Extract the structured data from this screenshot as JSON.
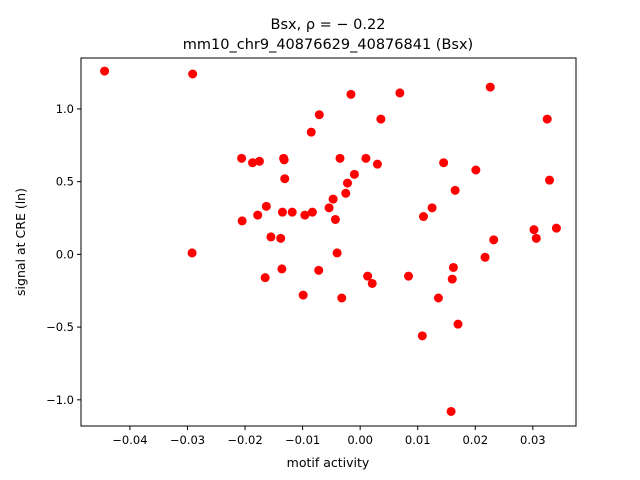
{
  "chart_data": {
    "type": "scatter",
    "title": "Bsx, ρ = − 0.22",
    "subtitle": "mm10_chr9_40876629_40876841 (Bsx)",
    "xlabel": "motif activity",
    "ylabel": "signal at CRE (ln)",
    "xlim": [
      -0.0485,
      0.0375
    ],
    "ylim": [
      -1.18,
      1.35
    ],
    "xticks": [
      -0.04,
      -0.03,
      -0.02,
      -0.01,
      0.0,
      0.01,
      0.02,
      0.03
    ],
    "xtick_labels": [
      "−0.04",
      "−0.03",
      "−0.02",
      "−0.01",
      "0.00",
      "0.01",
      "0.02",
      "0.03"
    ],
    "yticks": [
      -1.0,
      -0.5,
      0.0,
      0.5,
      1.0
    ],
    "ytick_labels": [
      "−1.0",
      "−0.5",
      "0.0",
      "0.5",
      "1.0"
    ],
    "grid": false,
    "marker_color": "#ff0000",
    "points": [
      [
        -0.0444,
        1.26
      ],
      [
        -0.0291,
        1.24
      ],
      [
        -0.0292,
        0.01
      ],
      [
        -0.0206,
        0.66
      ],
      [
        -0.0205,
        0.23
      ],
      [
        -0.0187,
        0.63
      ],
      [
        -0.0175,
        0.64
      ],
      [
        -0.0178,
        0.27
      ],
      [
        -0.0163,
        0.33
      ],
      [
        -0.0165,
        -0.16
      ],
      [
        -0.0155,
        0.12
      ],
      [
        -0.0138,
        0.11
      ],
      [
        -0.0135,
        0.29
      ],
      [
        -0.0133,
        0.66
      ],
      [
        -0.0132,
        0.65
      ],
      [
        -0.0131,
        0.52
      ],
      [
        -0.0136,
        -0.1
      ],
      [
        -0.0118,
        0.29
      ],
      [
        -0.0099,
        -0.28
      ],
      [
        -0.0096,
        0.27
      ],
      [
        -0.0085,
        0.84
      ],
      [
        -0.0083,
        0.29
      ],
      [
        -0.0071,
        0.96
      ],
      [
        -0.0072,
        -0.11
      ],
      [
        -0.0054,
        0.32
      ],
      [
        -0.0047,
        0.38
      ],
      [
        -0.0043,
        0.24
      ],
      [
        -0.004,
        0.01
      ],
      [
        -0.0035,
        0.66
      ],
      [
        -0.0032,
        -0.3
      ],
      [
        -0.0025,
        0.42
      ],
      [
        -0.0022,
        0.49
      ],
      [
        -0.0016,
        1.1
      ],
      [
        -0.001,
        0.55
      ],
      [
        0.001,
        0.66
      ],
      [
        0.0013,
        -0.15
      ],
      [
        0.0021,
        -0.2
      ],
      [
        0.003,
        0.62
      ],
      [
        0.0036,
        0.93
      ],
      [
        0.0069,
        1.11
      ],
      [
        0.0084,
        -0.15
      ],
      [
        0.0108,
        -0.56
      ],
      [
        0.011,
        0.26
      ],
      [
        0.0125,
        0.32
      ],
      [
        0.0136,
        -0.3
      ],
      [
        0.0145,
        0.63
      ],
      [
        0.0158,
        -1.08
      ],
      [
        0.016,
        -0.17
      ],
      [
        0.0162,
        -0.09
      ],
      [
        0.0165,
        0.44
      ],
      [
        0.017,
        -0.48
      ],
      [
        0.0201,
        0.58
      ],
      [
        0.0217,
        -0.02
      ],
      [
        0.0226,
        1.15
      ],
      [
        0.0232,
        0.1
      ],
      [
        0.0302,
        0.17
      ],
      [
        0.0306,
        0.11
      ],
      [
        0.0325,
        0.93
      ],
      [
        0.0329,
        0.51
      ],
      [
        0.0341,
        0.18
      ]
    ]
  }
}
